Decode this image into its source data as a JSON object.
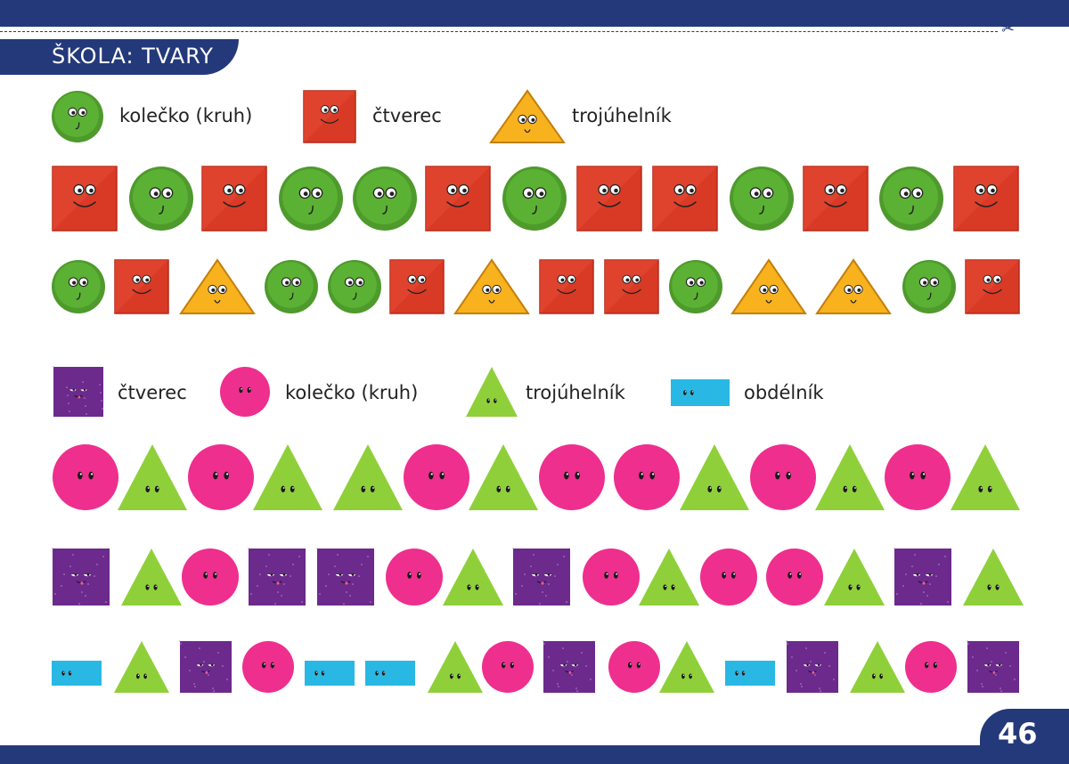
{
  "header": {
    "title": "ŠKOLA: TVARY",
    "scissors_icon": "scissors-icon"
  },
  "page_number": "46",
  "colors": {
    "navy": "#24397a",
    "green_circle": "#4e9a2c",
    "red_square": "#d93a25",
    "orange_triangle": "#f7b21e",
    "purple_square": "#6b2a8c",
    "pink_circle": "#ee2f8e",
    "lime_triangle": "#8fd03a",
    "cyan_rectangle": "#29b8e3"
  },
  "section1": {
    "legend": [
      {
        "shape": "green-circle",
        "label": "kolečko (kruh)"
      },
      {
        "shape": "red-square",
        "label": "čtverec"
      },
      {
        "shape": "orange-triangle",
        "label": "trojúhelník"
      }
    ],
    "row1": [
      "red-square",
      "green-circle",
      "red-square",
      "green-circle",
      "green-circle",
      "red-square",
      "green-circle",
      "red-square",
      "red-square",
      "green-circle",
      "red-square",
      "green-circle",
      "red-square"
    ],
    "row2": [
      "green-circle",
      "red-square",
      "orange-triangle",
      "green-circle",
      "green-circle",
      "red-square",
      "orange-triangle",
      "red-square",
      "red-square",
      "green-circle",
      "orange-triangle",
      "orange-triangle",
      "green-circle",
      "red-square"
    ]
  },
  "section2": {
    "legend": [
      {
        "shape": "purple-square",
        "label": "čtverec"
      },
      {
        "shape": "pink-circle",
        "label": "kolečko (kruh)"
      },
      {
        "shape": "lime-triangle",
        "label": "trojúhelník"
      },
      {
        "shape": "cyan-rectangle",
        "label": "obdélník"
      }
    ],
    "row1": [
      "pink-circle",
      "lime-triangle",
      "pink-circle",
      "lime-triangle",
      "lime-triangle",
      "pink-circle",
      "lime-triangle",
      "pink-circle",
      "pink-circle",
      "lime-triangle",
      "pink-circle",
      "lime-triangle",
      "pink-circle",
      "lime-triangle"
    ],
    "row2": [
      "purple-square",
      "lime-triangle",
      "pink-circle",
      "purple-square",
      "purple-square",
      "pink-circle",
      "lime-triangle",
      "purple-square",
      "pink-circle",
      "lime-triangle",
      "pink-circle",
      "pink-circle",
      "lime-triangle",
      "purple-square",
      "lime-triangle"
    ],
    "row3": [
      "cyan-rectangle",
      "lime-triangle",
      "purple-square",
      "pink-circle",
      "cyan-rectangle",
      "cyan-rectangle",
      "lime-triangle",
      "pink-circle",
      "purple-square",
      "pink-circle",
      "lime-triangle",
      "cyan-rectangle",
      "purple-square",
      "lime-triangle",
      "pink-circle",
      "purple-square"
    ]
  }
}
